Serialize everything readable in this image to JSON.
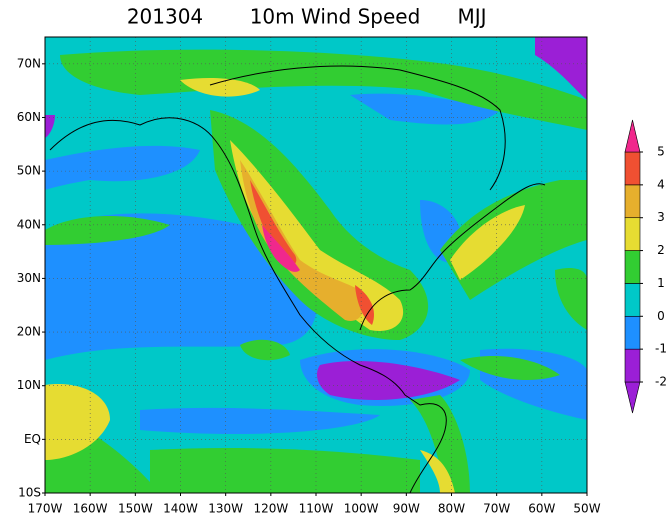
{
  "title": {
    "date": "201304",
    "variable": "10m Wind Speed",
    "season": "MJJ"
  },
  "map": {
    "lat_labels": [
      "10S",
      "EQ",
      "10N",
      "20N",
      "30N",
      "40N",
      "50N",
      "60N",
      "70N"
    ],
    "lon_labels": [
      "170W",
      "160W",
      "150W",
      "140W",
      "130W",
      "120W",
      "110W",
      "100W",
      "90W",
      "80W",
      "70W",
      "60W",
      "50W"
    ]
  },
  "colorbar": {
    "levels": [
      -2,
      -1,
      0,
      1,
      2,
      3,
      4,
      5
    ],
    "colors": [
      "#9b1fd6",
      "#9b1fd6",
      "#1e90ff",
      "#00c8c8",
      "#32cd32",
      "#e6dc32",
      "#e6af2d",
      "#f05032",
      "#f0288c"
    ]
  }
}
